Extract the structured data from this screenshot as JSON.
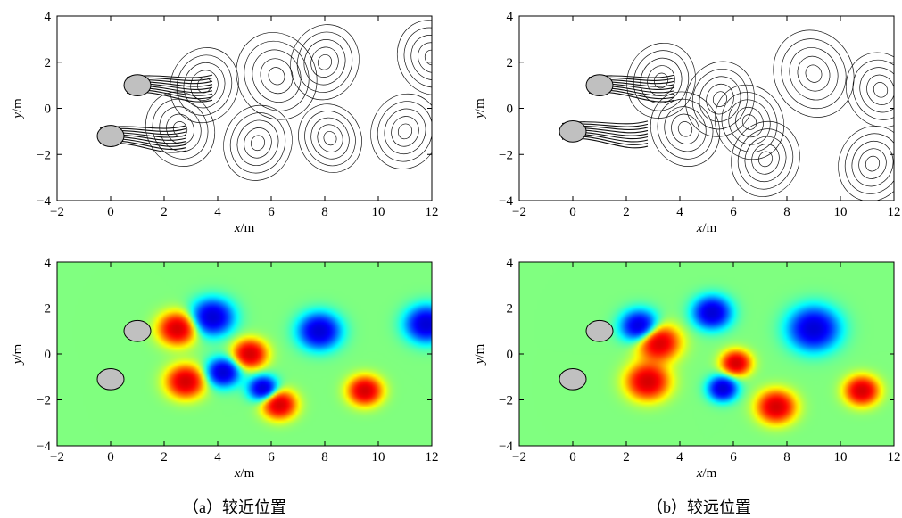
{
  "figure": {
    "captions": [
      {
        "id": "a",
        "text": "（a）较近位置"
      },
      {
        "id": "b",
        "text": "（b）较远位置"
      }
    ],
    "axes": {
      "x_label_var": "x",
      "x_label_unit": "/m",
      "y_label_var": "y",
      "y_label_unit": "/m",
      "x_ticks": [
        "−2",
        "0",
        "2",
        "4",
        "6",
        "8",
        "10",
        "12"
      ],
      "y_ticks": [
        "−4",
        "−2",
        "0",
        "2",
        "4"
      ]
    },
    "colors": {
      "background_field": "#80f080",
      "cylinder": "#c0c0c0",
      "positive_vortex": "#d80000",
      "negative_vortex": "#0030e0",
      "contour_line": "#111111"
    }
  },
  "chart_data": [
    {
      "type": "contour",
      "panel": "a-top",
      "xlim": [
        -2,
        12
      ],
      "ylim": [
        -4,
        4
      ],
      "cylinders": [
        {
          "x": 1,
          "y": 1,
          "r": 0.5
        },
        {
          "x": 0,
          "y": -1.2,
          "r": 0.5
        }
      ],
      "vortices": [
        {
          "x": 3.5,
          "y": 1.0,
          "sign": -1,
          "s": 0.6
        },
        {
          "x": 2.6,
          "y": -0.9,
          "sign": 1,
          "s": 0.6
        },
        {
          "x": 5.5,
          "y": -1.5,
          "sign": -1,
          "s": 0.6
        },
        {
          "x": 6.2,
          "y": 1.4,
          "sign": 1,
          "s": 0.7
        },
        {
          "x": 8.0,
          "y": 2.0,
          "sign": -1,
          "s": 0.6
        },
        {
          "x": 8.2,
          "y": -1.3,
          "sign": 1,
          "s": 0.55
        },
        {
          "x": 11.0,
          "y": -1.0,
          "sign": -1,
          "s": 0.6
        },
        {
          "x": 12.0,
          "y": 2.2,
          "sign": 1,
          "s": 0.6
        }
      ]
    },
    {
      "type": "contour",
      "panel": "b-top",
      "xlim": [
        -2,
        12
      ],
      "ylim": [
        -4,
        4
      ],
      "cylinders": [
        {
          "x": 1,
          "y": 1,
          "r": 0.5
        },
        {
          "x": 0,
          "y": -1.0,
          "r": 0.5
        }
      ],
      "vortices": [
        {
          "x": 3.3,
          "y": 1.2,
          "sign": -1,
          "s": 0.6
        },
        {
          "x": 4.2,
          "y": -0.9,
          "sign": 1,
          "s": 0.6
        },
        {
          "x": 5.5,
          "y": 0.4,
          "sign": -1,
          "s": 0.6
        },
        {
          "x": 6.6,
          "y": -0.6,
          "sign": 1,
          "s": 0.6
        },
        {
          "x": 7.2,
          "y": -2.2,
          "sign": -1,
          "s": 0.6
        },
        {
          "x": 9.0,
          "y": 1.5,
          "sign": 1,
          "s": 0.7
        },
        {
          "x": 11.2,
          "y": -2.4,
          "sign": -1,
          "s": 0.6
        },
        {
          "x": 11.5,
          "y": 0.8,
          "sign": 1,
          "s": 0.6
        }
      ]
    },
    {
      "type": "heatmap",
      "panel": "a-bottom",
      "xlim": [
        -2,
        12
      ],
      "ylim": [
        -4,
        4
      ],
      "cylinders": [
        {
          "x": 1,
          "y": 1,
          "r": 0.5
        },
        {
          "x": 0,
          "y": -1.1,
          "r": 0.5
        }
      ],
      "vortices": [
        {
          "x": 2.5,
          "y": 1.1,
          "sign": 1,
          "s": 0.45
        },
        {
          "x": 3.8,
          "y": 1.6,
          "sign": -1,
          "s": 0.5
        },
        {
          "x": 2.8,
          "y": -1.2,
          "sign": 1,
          "s": 0.45
        },
        {
          "x": 4.2,
          "y": -0.8,
          "sign": -1,
          "s": 0.4
        },
        {
          "x": 5.2,
          "y": 0.0,
          "sign": 1,
          "s": 0.4
        },
        {
          "x": 6.3,
          "y": -2.2,
          "sign": 1,
          "s": 0.4
        },
        {
          "x": 5.7,
          "y": -1.5,
          "sign": -1,
          "s": 0.35
        },
        {
          "x": 7.8,
          "y": 1.0,
          "sign": -1,
          "s": 0.5
        },
        {
          "x": 9.5,
          "y": -1.6,
          "sign": 1,
          "s": 0.4
        },
        {
          "x": 11.8,
          "y": 1.3,
          "sign": -1,
          "s": 0.5
        }
      ]
    },
    {
      "type": "heatmap",
      "panel": "b-bottom",
      "xlim": [
        -2,
        12
      ],
      "ylim": [
        -4,
        4
      ],
      "cylinders": [
        {
          "x": 1,
          "y": 1,
          "r": 0.5
        },
        {
          "x": 0,
          "y": -1.1,
          "r": 0.5
        }
      ],
      "vortices": [
        {
          "x": 2.5,
          "y": 1.2,
          "sign": -1,
          "s": 0.45
        },
        {
          "x": 3.2,
          "y": 0.5,
          "sign": 1,
          "s": 0.5
        },
        {
          "x": 2.8,
          "y": -1.2,
          "sign": 1,
          "s": 0.5
        },
        {
          "x": 5.2,
          "y": 1.8,
          "sign": -1,
          "s": 0.45
        },
        {
          "x": 6.1,
          "y": -0.4,
          "sign": 1,
          "s": 0.35
        },
        {
          "x": 5.6,
          "y": -1.5,
          "sign": -1,
          "s": 0.35
        },
        {
          "x": 7.6,
          "y": -2.3,
          "sign": 1,
          "s": 0.45
        },
        {
          "x": 9.0,
          "y": 1.1,
          "sign": -1,
          "s": 0.6
        },
        {
          "x": 10.8,
          "y": -1.6,
          "sign": 1,
          "s": 0.4
        }
      ]
    }
  ]
}
